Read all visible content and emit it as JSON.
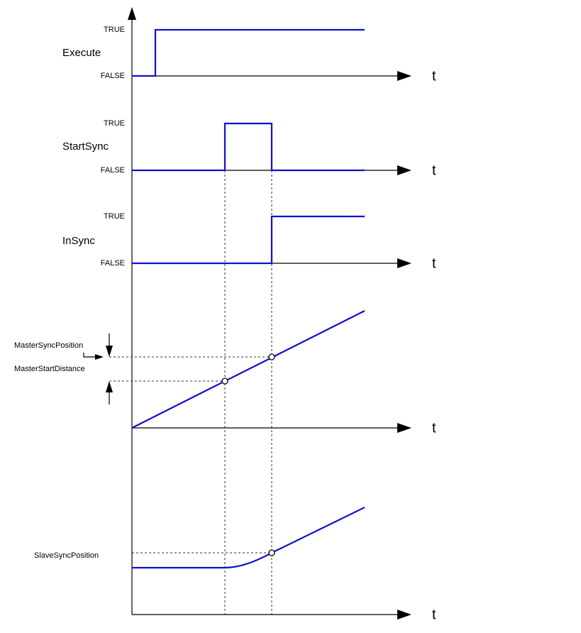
{
  "signals": [
    {
      "name": "Execute",
      "high_label": "TRUE",
      "low_label": "FALSE",
      "axis_label": "t"
    },
    {
      "name": "StartSync",
      "high_label": "TRUE",
      "low_label": "FALSE",
      "axis_label": "t"
    },
    {
      "name": "InSync",
      "high_label": "TRUE",
      "low_label": "FALSE",
      "axis_label": "t"
    }
  ],
  "master": {
    "axis_label": "t",
    "sync_position_label": "MasterSyncPosition",
    "start_distance_label": "MasterStartDistance"
  },
  "slave": {
    "axis_label": "t",
    "sync_position_label": "SlaveSyncPosition"
  }
}
